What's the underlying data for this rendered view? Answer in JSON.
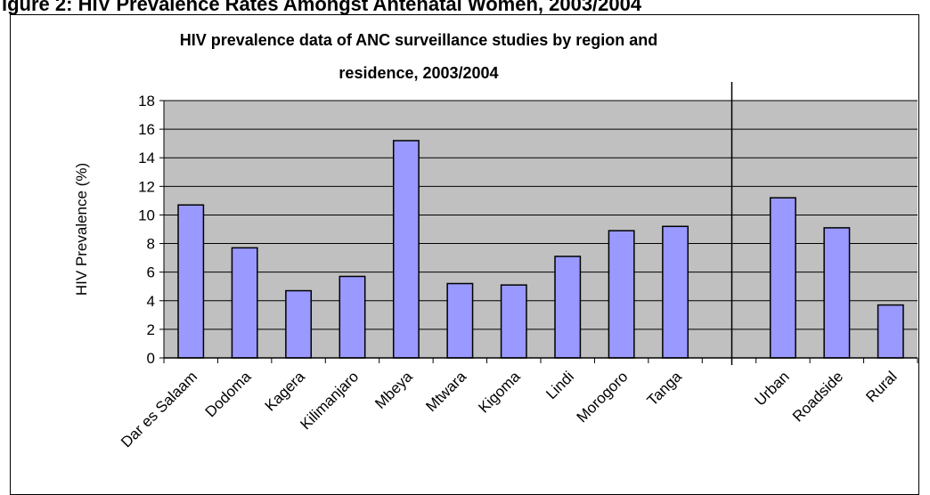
{
  "heading": "igure 2: HIV Prevalence Rates Amongst Antenatal Women, 2003/2004",
  "chart_data": {
    "type": "bar",
    "title_lines": [
      "HIV prevalence data of ANC surveillance studies by region and",
      "residence, 2003/2004"
    ],
    "ylabel": "HIV Prevalence (%)",
    "xlabel": "",
    "ylim": [
      0,
      18
    ],
    "yticks": [
      0,
      2,
      4,
      6,
      8,
      10,
      12,
      14,
      16,
      18
    ],
    "grid": true,
    "legend": "none",
    "categories": [
      "Dar es Salaam",
      "Dodoma",
      "Kagera",
      "Kilimanjaro",
      "Mbeya",
      "Mtwara",
      "Kigoma",
      "Lindi",
      "Morogoro",
      "Tanga",
      "",
      "Urban",
      "Roadside",
      "Rural"
    ],
    "values": [
      10.7,
      7.7,
      4.7,
      5.7,
      15.2,
      5.2,
      5.1,
      7.1,
      8.9,
      9.2,
      null,
      11.2,
      9.1,
      3.7
    ],
    "divider_after_index": 10,
    "colors": {
      "bar": "#9999ff",
      "plot_bg": "#c0c0c0",
      "border": "#000000"
    }
  }
}
